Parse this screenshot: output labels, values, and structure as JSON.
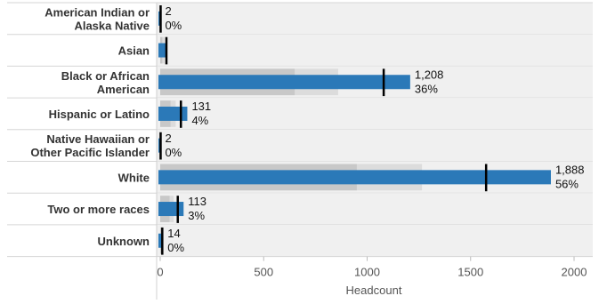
{
  "chart_data": {
    "type": "bar",
    "xlabel": "Headcount",
    "xlim": [
      0,
      2100
    ],
    "xticks": [
      0,
      500,
      1000,
      1500,
      2000
    ],
    "grid": "horizontal row separators",
    "colors": {
      "bar": "#2b79b8",
      "band_dark": "#c8c8c8",
      "band_light": "#dcdcdc",
      "row_bg": "#f0f0f0",
      "reference_line": "#000000"
    },
    "categories": [
      {
        "lines": [
          "American Indian or",
          "Alaska Native"
        ],
        "value": 2,
        "value_label": "2",
        "percent_label": "0%",
        "reference": 2,
        "band_dark": 0,
        "band_light": 0
      },
      {
        "lines": [
          "Asian"
        ],
        "value": 30,
        "value_label": "",
        "percent_label": "",
        "reference": 30,
        "band_dark": 10,
        "band_light": 20
      },
      {
        "lines": [
          "Black or African",
          "American"
        ],
        "value": 1208,
        "value_label": "1,208",
        "percent_label": "36%",
        "reference": 1080,
        "band_dark": 650,
        "band_light": 860
      },
      {
        "lines": [
          "Hispanic or Latino"
        ],
        "value": 131,
        "value_label": "131",
        "percent_label": "4%",
        "reference": 100,
        "band_dark": 50,
        "band_light": 75
      },
      {
        "lines": [
          "Native Hawaiian or",
          "Other Pacific Islander"
        ],
        "value": 2,
        "value_label": "2",
        "percent_label": "0%",
        "reference": 2,
        "band_dark": 0,
        "band_light": 0
      },
      {
        "lines": [
          "White"
        ],
        "value": 1888,
        "value_label": "1,888",
        "percent_label": "56%",
        "reference": 1575,
        "band_dark": 950,
        "band_light": 1265
      },
      {
        "lines": [
          "Two or more races"
        ],
        "value": 113,
        "value_label": "113",
        "percent_label": "3%",
        "reference": 85,
        "band_dark": 45,
        "band_light": 65
      },
      {
        "lines": [
          "Unknown"
        ],
        "value": 14,
        "value_label": "14",
        "percent_label": "0%",
        "reference": 10,
        "band_dark": 5,
        "band_light": 8
      }
    ]
  }
}
